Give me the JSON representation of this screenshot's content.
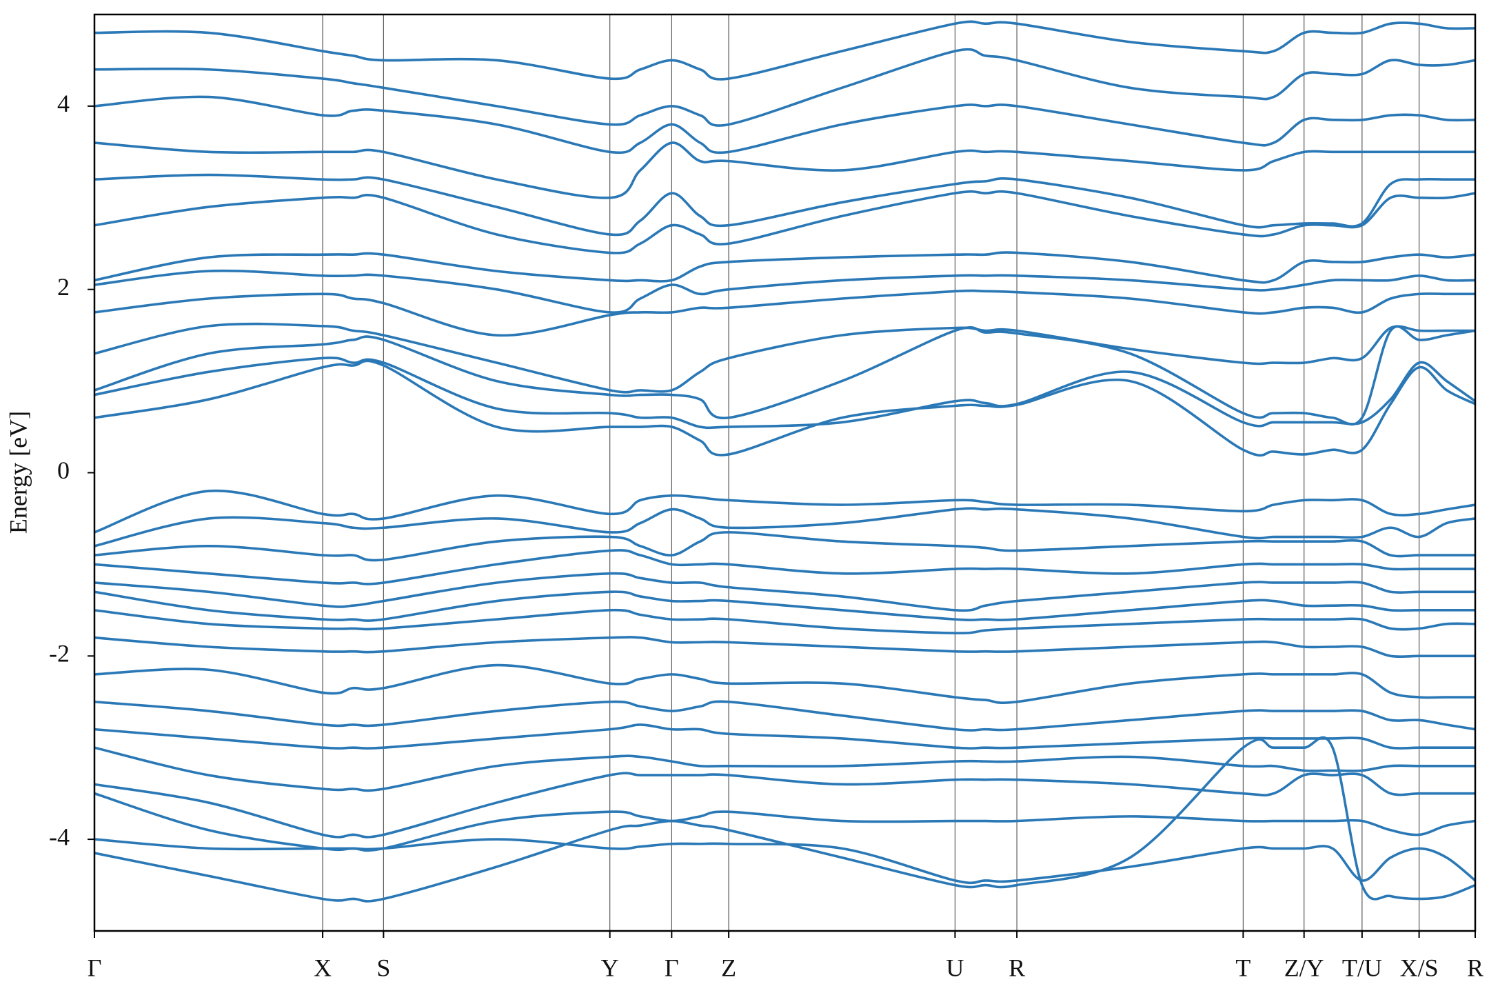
{
  "chart_data": {
    "type": "line",
    "y_label": "Energy [eV]",
    "color": "#2a78b6",
    "xlim": [
      0,
      14.52
    ],
    "ylim": [
      -5,
      5
    ],
    "yticks": [
      -4,
      -2,
      0,
      2,
      4
    ],
    "xticks": [
      {
        "value": 0,
        "label": "Γ"
      },
      {
        "value": 2.4,
        "label": "X"
      },
      {
        "value": 3.04,
        "label": "S"
      },
      {
        "value": 5.42,
        "label": "Y"
      },
      {
        "value": 6.07,
        "label": "Γ"
      },
      {
        "value": 6.67,
        "label": "Z"
      },
      {
        "value": 9.05,
        "label": "U"
      },
      {
        "value": 9.7,
        "label": "R"
      },
      {
        "value": 12.08,
        "label": "T"
      },
      {
        "value": 12.72,
        "label": "Z/Y"
      },
      {
        "value": 13.33,
        "label": "T/U"
      },
      {
        "value": 13.93,
        "label": "X/S"
      },
      {
        "value": 14.52,
        "label": "R"
      }
    ],
    "x": [
      0,
      1.2,
      2.4,
      2.72,
      3.04,
      4.23,
      5.42,
      5.74,
      6.07,
      6.37,
      6.67,
      7.86,
      9.05,
      9.37,
      9.7,
      10.89,
      12.08,
      12.4,
      12.72,
      13.02,
      13.33,
      13.63,
      13.93,
      14.22,
      14.52
    ],
    "series": [
      {
        "values": [
          0.6,
          0.8,
          1.15,
          1.17,
          1.17,
          0.5,
          0.5,
          0.5,
          0.5,
          0.35,
          0.2,
          0.6,
          0.73,
          0.73,
          0.74,
          1.0,
          0.25,
          0.23,
          0.2,
          0.25,
          0.25,
          0.75,
          1.15,
          0.9,
          0.75
        ]
      },
      {
        "values": [
          0.85,
          1.1,
          1.25,
          1.2,
          1.2,
          0.7,
          0.65,
          0.6,
          0.6,
          0.5,
          0.5,
          0.55,
          0.78,
          0.76,
          0.75,
          1.1,
          0.55,
          0.55,
          0.55,
          0.55,
          0.55,
          0.8,
          1.2,
          1.0,
          0.78
        ]
      },
      {
        "values": [
          0.9,
          1.3,
          1.4,
          1.45,
          1.45,
          1.0,
          0.85,
          0.85,
          0.85,
          0.8,
          0.6,
          1.0,
          1.55,
          1.53,
          1.52,
          1.3,
          0.65,
          0.65,
          0.65,
          0.6,
          0.6,
          1.55,
          1.45,
          1.5,
          1.55
        ]
      },
      {
        "values": [
          1.3,
          1.6,
          1.6,
          1.55,
          1.5,
          1.2,
          0.9,
          0.9,
          0.9,
          1.1,
          1.25,
          1.5,
          1.58,
          1.55,
          1.55,
          1.35,
          1.2,
          1.2,
          1.2,
          1.25,
          1.25,
          1.58,
          1.55,
          1.55,
          1.55
        ]
      },
      {
        "values": [
          1.75,
          1.9,
          1.95,
          1.9,
          1.85,
          1.5,
          1.72,
          1.75,
          1.75,
          1.8,
          1.8,
          1.9,
          1.98,
          1.98,
          1.97,
          1.9,
          1.75,
          1.75,
          1.8,
          1.8,
          1.75,
          1.9,
          1.95,
          1.95,
          1.95
        ]
      },
      {
        "values": [
          2.05,
          2.2,
          2.15,
          2.15,
          2.15,
          2.0,
          1.75,
          1.9,
          2.05,
          1.95,
          2.0,
          2.1,
          2.15,
          2.15,
          2.15,
          2.1,
          2.0,
          2.0,
          2.05,
          2.1,
          2.1,
          2.1,
          2.15,
          2.1,
          2.1
        ]
      },
      {
        "values": [
          2.1,
          2.35,
          2.38,
          2.38,
          2.38,
          2.2,
          2.1,
          2.1,
          2.1,
          2.25,
          2.3,
          2.35,
          2.38,
          2.38,
          2.4,
          2.3,
          2.1,
          2.1,
          2.3,
          2.3,
          2.3,
          2.35,
          2.38,
          2.35,
          2.38
        ]
      },
      {
        "values": [
          2.7,
          2.9,
          3.0,
          3.0,
          3.0,
          2.6,
          2.4,
          2.5,
          2.7,
          2.6,
          2.5,
          2.8,
          3.05,
          3.05,
          3.05,
          2.8,
          2.6,
          2.6,
          2.7,
          2.7,
          2.7,
          3.0,
          3.0,
          3.0,
          3.05
        ]
      },
      {
        "values": [
          3.2,
          3.25,
          3.2,
          3.2,
          3.2,
          2.9,
          2.6,
          2.75,
          3.05,
          2.8,
          2.7,
          2.95,
          3.15,
          3.18,
          3.2,
          3.0,
          2.7,
          2.7,
          2.72,
          2.72,
          2.72,
          3.15,
          3.2,
          3.2,
          3.2
        ]
      },
      {
        "values": [
          3.6,
          3.5,
          3.5,
          3.5,
          3.5,
          3.2,
          3.0,
          3.3,
          3.6,
          3.4,
          3.4,
          3.3,
          3.5,
          3.5,
          3.5,
          3.4,
          3.3,
          3.4,
          3.5,
          3.5,
          3.5,
          3.5,
          3.5,
          3.5,
          3.5
        ]
      },
      {
        "values": [
          4.0,
          4.1,
          3.9,
          3.95,
          3.95,
          3.8,
          3.5,
          3.6,
          3.8,
          3.6,
          3.5,
          3.8,
          4.0,
          4.0,
          4.0,
          3.8,
          3.6,
          3.6,
          3.85,
          3.85,
          3.85,
          3.9,
          3.9,
          3.85,
          3.85
        ]
      },
      {
        "values": [
          4.4,
          4.4,
          4.3,
          4.25,
          4.2,
          4.0,
          3.8,
          3.9,
          4.0,
          3.9,
          3.8,
          4.2,
          4.6,
          4.55,
          4.5,
          4.2,
          4.1,
          4.1,
          4.35,
          4.35,
          4.35,
          4.5,
          4.45,
          4.45,
          4.5
        ]
      },
      {
        "values": [
          4.8,
          4.8,
          4.6,
          4.55,
          4.5,
          4.5,
          4.3,
          4.4,
          4.5,
          4.4,
          4.3,
          4.6,
          4.9,
          4.9,
          4.9,
          4.7,
          4.6,
          4.6,
          4.8,
          4.8,
          4.8,
          4.9,
          4.9,
          4.85,
          4.85
        ]
      },
      {
        "values": [
          -0.65,
          -0.2,
          -0.45,
          -0.45,
          -0.5,
          -0.25,
          -0.45,
          -0.3,
          -0.25,
          -0.27,
          -0.3,
          -0.35,
          -0.3,
          -0.32,
          -0.35,
          -0.35,
          -0.42,
          -0.35,
          -0.3,
          -0.3,
          -0.3,
          -0.45,
          -0.45,
          -0.4,
          -0.35
        ]
      },
      {
        "values": [
          -0.8,
          -0.5,
          -0.55,
          -0.6,
          -0.6,
          -0.5,
          -0.65,
          -0.55,
          -0.4,
          -0.5,
          -0.6,
          -0.55,
          -0.4,
          -0.4,
          -0.4,
          -0.5,
          -0.7,
          -0.7,
          -0.7,
          -0.7,
          -0.7,
          -0.6,
          -0.7,
          -0.55,
          -0.5
        ]
      },
      {
        "values": [
          -0.9,
          -0.8,
          -0.9,
          -0.9,
          -0.95,
          -0.75,
          -0.7,
          -0.8,
          -0.9,
          -0.75,
          -0.65,
          -0.75,
          -0.8,
          -0.82,
          -0.85,
          -0.8,
          -0.75,
          -0.75,
          -0.75,
          -0.75,
          -0.75,
          -0.9,
          -0.9,
          -0.9,
          -0.9
        ]
      },
      {
        "values": [
          -1.0,
          -1.1,
          -1.2,
          -1.2,
          -1.2,
          -1.0,
          -0.85,
          -0.9,
          -1.0,
          -1.0,
          -1.0,
          -1.1,
          -1.05,
          -1.05,
          -1.05,
          -1.1,
          -1.0,
          -1.0,
          -1.0,
          -1.0,
          -1.0,
          -1.05,
          -1.05,
          -1.05,
          -1.05
        ]
      },
      {
        "values": [
          -1.2,
          -1.3,
          -1.45,
          -1.45,
          -1.4,
          -1.2,
          -1.1,
          -1.15,
          -1.2,
          -1.2,
          -1.25,
          -1.35,
          -1.5,
          -1.45,
          -1.4,
          -1.3,
          -1.2,
          -1.2,
          -1.2,
          -1.2,
          -1.2,
          -1.3,
          -1.3,
          -1.3,
          -1.3
        ]
      },
      {
        "values": [
          -1.3,
          -1.5,
          -1.6,
          -1.6,
          -1.6,
          -1.4,
          -1.3,
          -1.35,
          -1.4,
          -1.4,
          -1.4,
          -1.5,
          -1.6,
          -1.6,
          -1.6,
          -1.5,
          -1.4,
          -1.4,
          -1.45,
          -1.45,
          -1.45,
          -1.5,
          -1.5,
          -1.5,
          -1.5
        ]
      },
      {
        "values": [
          -1.5,
          -1.65,
          -1.7,
          -1.7,
          -1.7,
          -1.6,
          -1.5,
          -1.55,
          -1.6,
          -1.6,
          -1.6,
          -1.7,
          -1.75,
          -1.72,
          -1.7,
          -1.65,
          -1.6,
          -1.6,
          -1.6,
          -1.6,
          -1.6,
          -1.7,
          -1.7,
          -1.65,
          -1.65
        ]
      },
      {
        "values": [
          -1.8,
          -1.9,
          -1.95,
          -1.95,
          -1.95,
          -1.85,
          -1.8,
          -1.8,
          -1.85,
          -1.85,
          -1.85,
          -1.9,
          -1.95,
          -1.95,
          -1.95,
          -1.9,
          -1.85,
          -1.85,
          -1.9,
          -1.9,
          -1.9,
          -2.0,
          -2.0,
          -2.0,
          -2.0
        ]
      },
      {
        "values": [
          -2.2,
          -2.15,
          -2.4,
          -2.35,
          -2.35,
          -2.1,
          -2.3,
          -2.25,
          -2.2,
          -2.25,
          -2.3,
          -2.3,
          -2.45,
          -2.48,
          -2.5,
          -2.3,
          -2.2,
          -2.2,
          -2.2,
          -2.2,
          -2.2,
          -2.4,
          -2.45,
          -2.45,
          -2.45
        ]
      },
      {
        "values": [
          -2.5,
          -2.6,
          -2.75,
          -2.75,
          -2.75,
          -2.6,
          -2.5,
          -2.55,
          -2.6,
          -2.55,
          -2.5,
          -2.65,
          -2.8,
          -2.8,
          -2.8,
          -2.7,
          -2.6,
          -2.6,
          -2.6,
          -2.6,
          -2.6,
          -2.7,
          -2.7,
          -2.75,
          -2.8
        ]
      },
      {
        "values": [
          -2.8,
          -2.9,
          -3.0,
          -3.0,
          -3.0,
          -2.9,
          -2.8,
          -2.75,
          -2.8,
          -2.8,
          -2.85,
          -2.9,
          -3.0,
          -3.0,
          -3.0,
          -2.95,
          -2.9,
          -2.9,
          -2.9,
          -2.9,
          -2.9,
          -3.0,
          -3.0,
          -3.0,
          -3.0
        ]
      },
      {
        "values": [
          -3.0,
          -3.3,
          -3.45,
          -3.45,
          -3.45,
          -3.2,
          -3.1,
          -3.1,
          -3.15,
          -3.2,
          -3.2,
          -3.2,
          -3.15,
          -3.15,
          -3.15,
          -3.1,
          -3.2,
          -3.2,
          -3.25,
          -3.25,
          -3.25,
          -3.2,
          -3.2,
          -3.2,
          -3.2
        ]
      },
      {
        "values": [
          -3.4,
          -3.6,
          -3.95,
          -3.95,
          -3.95,
          -3.6,
          -3.3,
          -3.3,
          -3.3,
          -3.3,
          -3.3,
          -3.4,
          -3.35,
          -3.35,
          -3.35,
          -3.4,
          -3.5,
          -3.5,
          -3.3,
          -3.3,
          -3.3,
          -3.5,
          -3.5,
          -3.5,
          -3.5
        ]
      },
      {
        "values": [
          -3.5,
          -3.9,
          -4.1,
          -4.1,
          -4.1,
          -3.8,
          -3.7,
          -3.75,
          -3.8,
          -3.75,
          -3.7,
          -3.8,
          -3.8,
          -3.8,
          -3.8,
          -3.75,
          -3.8,
          -3.8,
          -3.8,
          -3.8,
          -3.8,
          -3.9,
          -3.95,
          -3.85,
          -3.8
        ]
      },
      {
        "values": [
          -4.0,
          -4.1,
          -4.1,
          -4.1,
          -4.1,
          -4.0,
          -4.1,
          -4.08,
          -4.05,
          -4.05,
          -4.05,
          -4.1,
          -4.45,
          -4.45,
          -4.45,
          -4.3,
          -4.1,
          -4.1,
          -4.1,
          -4.1,
          -4.45,
          -4.2,
          -4.1,
          -4.2,
          -4.45
        ]
      },
      {
        "values": [
          -4.15,
          -4.4,
          -4.65,
          -4.65,
          -4.65,
          -4.3,
          -3.9,
          -3.85,
          -3.8,
          -3.85,
          -3.9,
          -4.2,
          -4.5,
          -4.5,
          -4.5,
          -4.2,
          -3.0,
          -3.0,
          -3.0,
          -3.0,
          -4.5,
          -4.62,
          -4.65,
          -4.62,
          -4.5
        ]
      }
    ]
  }
}
